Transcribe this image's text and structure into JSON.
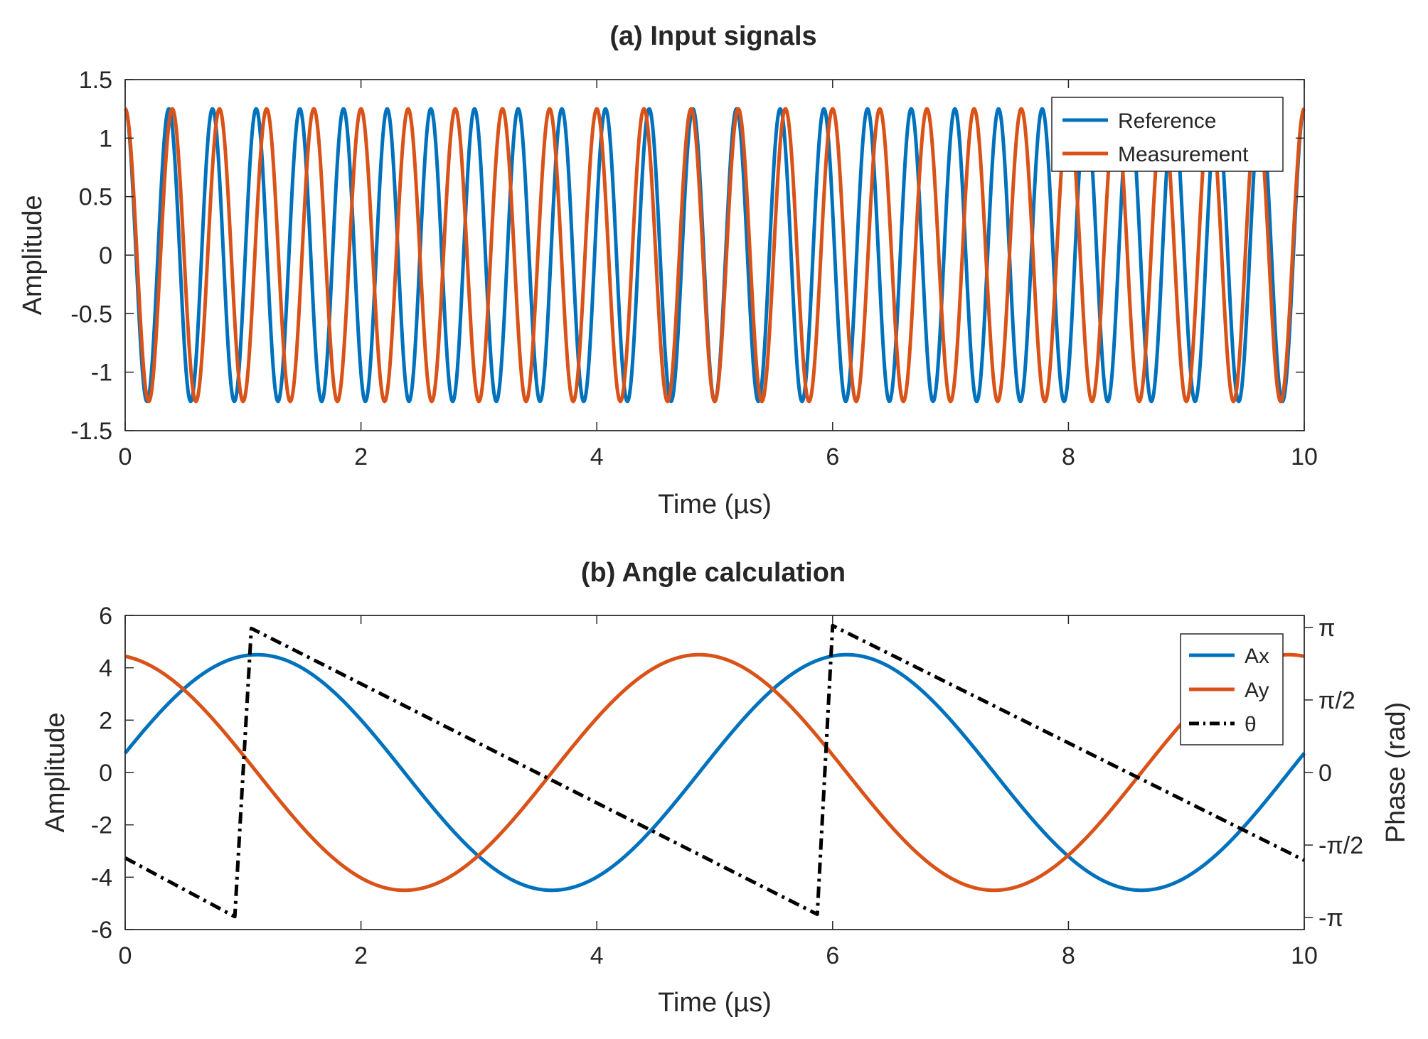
{
  "chart_data": [
    {
      "type": "line",
      "title": "(a) Input signals",
      "xlabel": "Time (µs)",
      "ylabel": "Amplitude",
      "xlim": [
        0,
        10
      ],
      "ylim": [
        -1.5,
        1.5
      ],
      "xticks": [
        0,
        2,
        4,
        6,
        8,
        10
      ],
      "xtick_labels": [
        "0",
        "2",
        "4",
        "6",
        "8",
        "10"
      ],
      "yticks": [
        -1.5,
        -1,
        -0.5,
        0,
        0.5,
        1,
        1.5
      ],
      "ytick_labels": [
        "-1.5",
        "-1",
        "-0.5",
        "0",
        "0.5",
        "1",
        "1.5"
      ],
      "legend_position": "top-right",
      "series": [
        {
          "name": "Reference",
          "color": "#0072BD",
          "function": "sinusoid",
          "amplitude": 1.25,
          "frequency_mhz": 2.7,
          "phase_rad": 1.5708
        },
        {
          "name": "Measurement",
          "color": "#D95319",
          "function": "sinusoid",
          "amplitude": 1.25,
          "frequency_mhz": 2.5,
          "phase_rad": 1.5708
        }
      ]
    },
    {
      "type": "line",
      "title": "(b) Angle calculation",
      "xlabel": "Time (µs)",
      "ylabel": "Amplitude",
      "ylabel_right": "Phase (rad)",
      "xlim": [
        0,
        10
      ],
      "ylim": [
        -6,
        6
      ],
      "ylim_right": [
        -3.4,
        3.4
      ],
      "xticks": [
        0,
        2,
        4,
        6,
        8,
        10
      ],
      "xtick_labels": [
        "0",
        "2",
        "4",
        "6",
        "8",
        "10"
      ],
      "yticks": [
        -6,
        -4,
        -2,
        0,
        2,
        4,
        6
      ],
      "ytick_labels": [
        "-6",
        "-4",
        "-2",
        "0",
        "2",
        "4",
        "6"
      ],
      "yticks_right": [
        -3.14159,
        -1.5708,
        0,
        1.5708,
        3.14159
      ],
      "ytick_labels_right": [
        "-π",
        "-π/2",
        "0",
        "π/2",
        "π"
      ],
      "legend_position": "top-right",
      "series": [
        {
          "name": "Ax",
          "color": "#0072BD",
          "axis": "left",
          "function": "sinusoid",
          "amplitude": 4.5,
          "frequency_mhz": 0.2,
          "phase_rad": 0.165
        },
        {
          "name": "Ay",
          "color": "#D95319",
          "axis": "left",
          "function": "sinusoid",
          "amplitude": 4.5,
          "frequency_mhz": 0.2,
          "phase_rad": 1.736
        },
        {
          "name": "θ",
          "color": "#000000",
          "axis": "right",
          "style": "dash-dot",
          "function": "wrapped-linear",
          "points": [
            [
              0,
              -1.85
            ],
            [
              0.93,
              -3.12
            ],
            [
              1.07,
              3.12
            ],
            [
              5.87,
              -3.07
            ],
            [
              6.0,
              3.18
            ],
            [
              10,
              -1.9
            ]
          ]
        }
      ]
    }
  ]
}
